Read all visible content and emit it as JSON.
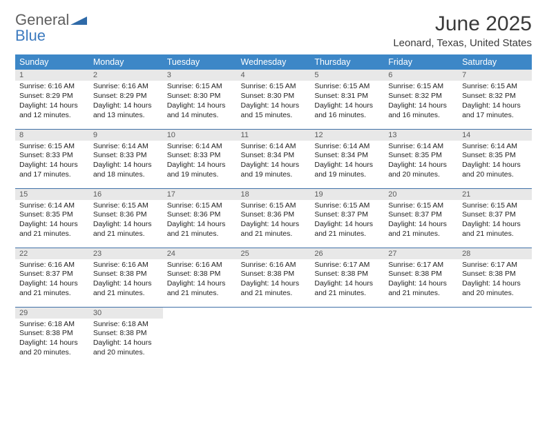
{
  "brand": {
    "general": "General",
    "blue": "Blue"
  },
  "title": "June 2025",
  "location": "Leonard, Texas, United States",
  "colors": {
    "header_bg": "#3d87c7",
    "header_fg": "#ffffff",
    "daynum_bg": "#e8e8e8",
    "daynum_fg": "#5a5a5a",
    "row_border": "#3d6fa6",
    "logo_gray": "#5e5e5e",
    "logo_blue": "#3d7bbf"
  },
  "day_headers": [
    "Sunday",
    "Monday",
    "Tuesday",
    "Wednesday",
    "Thursday",
    "Friday",
    "Saturday"
  ],
  "weeks": [
    [
      {
        "n": "1",
        "sr": "6:16 AM",
        "ss": "8:29 PM",
        "dl": "Daylight: 14 hours and 12 minutes."
      },
      {
        "n": "2",
        "sr": "6:16 AM",
        "ss": "8:29 PM",
        "dl": "Daylight: 14 hours and 13 minutes."
      },
      {
        "n": "3",
        "sr": "6:15 AM",
        "ss": "8:30 PM",
        "dl": "Daylight: 14 hours and 14 minutes."
      },
      {
        "n": "4",
        "sr": "6:15 AM",
        "ss": "8:30 PM",
        "dl": "Daylight: 14 hours and 15 minutes."
      },
      {
        "n": "5",
        "sr": "6:15 AM",
        "ss": "8:31 PM",
        "dl": "Daylight: 14 hours and 16 minutes."
      },
      {
        "n": "6",
        "sr": "6:15 AM",
        "ss": "8:32 PM",
        "dl": "Daylight: 14 hours and 16 minutes."
      },
      {
        "n": "7",
        "sr": "6:15 AM",
        "ss": "8:32 PM",
        "dl": "Daylight: 14 hours and 17 minutes."
      }
    ],
    [
      {
        "n": "8",
        "sr": "6:15 AM",
        "ss": "8:33 PM",
        "dl": "Daylight: 14 hours and 17 minutes."
      },
      {
        "n": "9",
        "sr": "6:14 AM",
        "ss": "8:33 PM",
        "dl": "Daylight: 14 hours and 18 minutes."
      },
      {
        "n": "10",
        "sr": "6:14 AM",
        "ss": "8:33 PM",
        "dl": "Daylight: 14 hours and 19 minutes."
      },
      {
        "n": "11",
        "sr": "6:14 AM",
        "ss": "8:34 PM",
        "dl": "Daylight: 14 hours and 19 minutes."
      },
      {
        "n": "12",
        "sr": "6:14 AM",
        "ss": "8:34 PM",
        "dl": "Daylight: 14 hours and 19 minutes."
      },
      {
        "n": "13",
        "sr": "6:14 AM",
        "ss": "8:35 PM",
        "dl": "Daylight: 14 hours and 20 minutes."
      },
      {
        "n": "14",
        "sr": "6:14 AM",
        "ss": "8:35 PM",
        "dl": "Daylight: 14 hours and 20 minutes."
      }
    ],
    [
      {
        "n": "15",
        "sr": "6:14 AM",
        "ss": "8:35 PM",
        "dl": "Daylight: 14 hours and 21 minutes."
      },
      {
        "n": "16",
        "sr": "6:15 AM",
        "ss": "8:36 PM",
        "dl": "Daylight: 14 hours and 21 minutes."
      },
      {
        "n": "17",
        "sr": "6:15 AM",
        "ss": "8:36 PM",
        "dl": "Daylight: 14 hours and 21 minutes."
      },
      {
        "n": "18",
        "sr": "6:15 AM",
        "ss": "8:36 PM",
        "dl": "Daylight: 14 hours and 21 minutes."
      },
      {
        "n": "19",
        "sr": "6:15 AM",
        "ss": "8:37 PM",
        "dl": "Daylight: 14 hours and 21 minutes."
      },
      {
        "n": "20",
        "sr": "6:15 AM",
        "ss": "8:37 PM",
        "dl": "Daylight: 14 hours and 21 minutes."
      },
      {
        "n": "21",
        "sr": "6:15 AM",
        "ss": "8:37 PM",
        "dl": "Daylight: 14 hours and 21 minutes."
      }
    ],
    [
      {
        "n": "22",
        "sr": "6:16 AM",
        "ss": "8:37 PM",
        "dl": "Daylight: 14 hours and 21 minutes."
      },
      {
        "n": "23",
        "sr": "6:16 AM",
        "ss": "8:38 PM",
        "dl": "Daylight: 14 hours and 21 minutes."
      },
      {
        "n": "24",
        "sr": "6:16 AM",
        "ss": "8:38 PM",
        "dl": "Daylight: 14 hours and 21 minutes."
      },
      {
        "n": "25",
        "sr": "6:16 AM",
        "ss": "8:38 PM",
        "dl": "Daylight: 14 hours and 21 minutes."
      },
      {
        "n": "26",
        "sr": "6:17 AM",
        "ss": "8:38 PM",
        "dl": "Daylight: 14 hours and 21 minutes."
      },
      {
        "n": "27",
        "sr": "6:17 AM",
        "ss": "8:38 PM",
        "dl": "Daylight: 14 hours and 21 minutes."
      },
      {
        "n": "28",
        "sr": "6:17 AM",
        "ss": "8:38 PM",
        "dl": "Daylight: 14 hours and 20 minutes."
      }
    ],
    [
      {
        "n": "29",
        "sr": "6:18 AM",
        "ss": "8:38 PM",
        "dl": "Daylight: 14 hours and 20 minutes."
      },
      {
        "n": "30",
        "sr": "6:18 AM",
        "ss": "8:38 PM",
        "dl": "Daylight: 14 hours and 20 minutes."
      },
      null,
      null,
      null,
      null,
      null
    ]
  ],
  "labels": {
    "sunrise_prefix": "Sunrise: ",
    "sunset_prefix": "Sunset: "
  }
}
